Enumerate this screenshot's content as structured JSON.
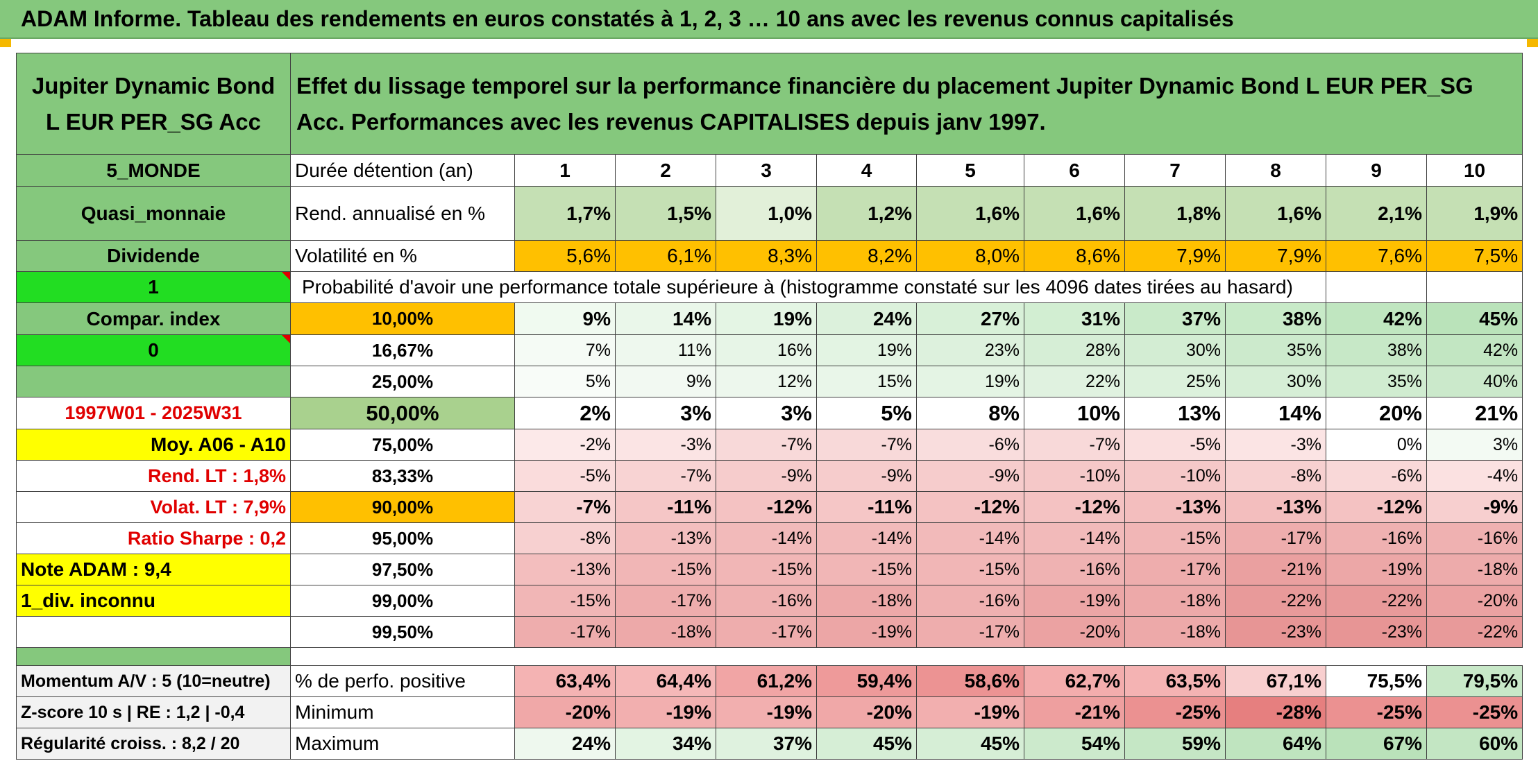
{
  "title": "ADAM Informe. Tableau des rendements en euros constatés à 1, 2, 3 … 10 ans avec les revenus connus capitalisés",
  "fund_name": "Jupiter Dynamic Bond L EUR PER_SG Acc",
  "description": "Effet du lissage temporel sur la performance financière du placement Jupiter Dynamic Bond L EUR PER_SG Acc. Performances avec les revenus CAPITALISES depuis janv 1997.",
  "left": {
    "zone": "5_MONDE",
    "category": "Quasi_monnaie",
    "dividende_label": "Dividende",
    "dividende_value": "1",
    "compar_label": "Compar. index",
    "compar_value": "0",
    "period": "1997W01 - 2025W31",
    "moy": "Moy. A06 - A10",
    "rend_lt": "Rend. LT :   1,8%",
    "volat_lt": "Volat. LT :   7,9%",
    "sharpe": "Ratio Sharpe :    0,2",
    "note": "Note ADAM : 9,4",
    "div_inconnu": "1_div. inconnu",
    "momentum": "Momentum A/V : 5 (10=neutre)",
    "zscore": "Z-score 10 s | RE : 1,2 | -0,4",
    "regularite": "Régularité croiss. : 8,2 / 20"
  },
  "labels": {
    "duree": "Durée détention (an)",
    "rend": "Rend. annualisé en %",
    "vol": "Volatilité en %",
    "proba": "Probabilité d'avoir une performance totale supérieure à (histogramme constaté sur les 4096 dates tirées au hasard)",
    "perfo_pos": "% de perfo. positive",
    "minimum": "Minimum",
    "maximum": "Maximum"
  },
  "years": [
    "1",
    "2",
    "3",
    "4",
    "5",
    "6",
    "7",
    "8",
    "9",
    "10"
  ],
  "rend": [
    "1,7%",
    "1,5%",
    "1,0%",
    "1,2%",
    "1,6%",
    "1,6%",
    "1,8%",
    "1,6%",
    "2,1%",
    "1,9%"
  ],
  "vol": [
    "5,6%",
    "6,1%",
    "8,3%",
    "8,2%",
    "8,0%",
    "8,6%",
    "7,9%",
    "7,9%",
    "7,6%",
    "7,5%"
  ],
  "prob_rows": [
    {
      "p": "10,00%",
      "v": [
        "9%",
        "14%",
        "19%",
        "24%",
        "27%",
        "31%",
        "37%",
        "38%",
        "42%",
        "45%"
      ]
    },
    {
      "p": "16,67%",
      "v": [
        "7%",
        "11%",
        "16%",
        "19%",
        "23%",
        "28%",
        "30%",
        "35%",
        "38%",
        "42%"
      ]
    },
    {
      "p": "25,00%",
      "v": [
        "5%",
        "9%",
        "12%",
        "15%",
        "19%",
        "22%",
        "25%",
        "30%",
        "35%",
        "40%"
      ]
    },
    {
      "p": "50,00%",
      "v": [
        "2%",
        "3%",
        "3%",
        "5%",
        "8%",
        "10%",
        "13%",
        "14%",
        "20%",
        "21%"
      ]
    },
    {
      "p": "75,00%",
      "v": [
        "-2%",
        "-3%",
        "-7%",
        "-7%",
        "-6%",
        "-7%",
        "-5%",
        "-3%",
        "0%",
        "3%"
      ]
    },
    {
      "p": "83,33%",
      "v": [
        "-5%",
        "-7%",
        "-9%",
        "-9%",
        "-9%",
        "-10%",
        "-10%",
        "-8%",
        "-6%",
        "-4%"
      ]
    },
    {
      "p": "90,00%",
      "v": [
        "-7%",
        "-11%",
        "-12%",
        "-11%",
        "-12%",
        "-12%",
        "-13%",
        "-13%",
        "-12%",
        "-9%"
      ]
    },
    {
      "p": "95,00%",
      "v": [
        "-8%",
        "-13%",
        "-14%",
        "-14%",
        "-14%",
        "-14%",
        "-15%",
        "-17%",
        "-16%",
        "-16%"
      ]
    },
    {
      "p": "97,50%",
      "v": [
        "-13%",
        "-15%",
        "-15%",
        "-15%",
        "-15%",
        "-16%",
        "-17%",
        "-21%",
        "-19%",
        "-18%"
      ]
    },
    {
      "p": "99,00%",
      "v": [
        "-15%",
        "-17%",
        "-16%",
        "-18%",
        "-16%",
        "-19%",
        "-18%",
        "-22%",
        "-22%",
        "-20%"
      ]
    },
    {
      "p": "99,50%",
      "v": [
        "-17%",
        "-18%",
        "-17%",
        "-19%",
        "-17%",
        "-20%",
        "-18%",
        "-23%",
        "-23%",
        "-22%"
      ]
    }
  ],
  "perfo_pos": [
    "63,4%",
    "64,4%",
    "61,2%",
    "59,4%",
    "58,6%",
    "62,7%",
    "63,5%",
    "67,1%",
    "75,5%",
    "79,5%"
  ],
  "minimum": [
    "-20%",
    "-19%",
    "-19%",
    "-20%",
    "-19%",
    "-21%",
    "-25%",
    "-28%",
    "-25%",
    "-25%"
  ],
  "maximum": [
    "24%",
    "34%",
    "37%",
    "45%",
    "45%",
    "54%",
    "59%",
    "64%",
    "67%",
    "60%"
  ],
  "colors": {
    "header_green": "#85c87d",
    "rend_fills": [
      "#c5e0b4",
      "#c5e0b4",
      "#e2f0d9",
      "#c5e0b4",
      "#c5e0b4",
      "#c5e0b4",
      "#c5e0b4",
      "#c5e0b4",
      "#c5e0b4",
      "#c5e0b4"
    ],
    "vol_fill": "#ffc000",
    "prob_fills": [
      [
        "#f0faf0",
        "#eaf7ea",
        "#e4f5e4",
        "#dcf1dc",
        "#d8f0d8",
        "#d2eed2",
        "#c9eac9",
        "#c8eac8",
        "#c0e6c0",
        "#bae3ba"
      ],
      [
        "#f5fbf5",
        "#eef8ee",
        "#e7f5e7",
        "#e3f4e3",
        "#ddf1dd",
        "#d6eed6",
        "#d3edd3",
        "#cceacc",
        "#c7e8c7",
        "#c2e6c2"
      ],
      [
        "#f8fcf8",
        "#f2f9f2",
        "#edf7ed",
        "#e9f6e9",
        "#e4f4e4",
        "#e0f2e0",
        "#dcf1dc",
        "#d6eed6",
        "#d0ecd0",
        "#cbe9cb"
      ],
      [
        "#ffffff",
        "#ffffff",
        "#ffffff",
        "#ffffff",
        "#ffffff",
        "#ffffff",
        "#ffffff",
        "#ffffff",
        "#ffffff",
        "#ffffff"
      ],
      [
        "#fce9e9",
        "#fbe4e4",
        "#f8d9d9",
        "#f8d9d9",
        "#f9dddd",
        "#f8d9d9",
        "#fadfdf",
        "#fbe4e4",
        "#ffffff",
        "#f3faf3"
      ],
      [
        "#fadcdc",
        "#f8d3d3",
        "#f6cccc",
        "#f6cccc",
        "#f6cccc",
        "#f5c8c8",
        "#f5c8c8",
        "#f7d0d0",
        "#f9d8d8",
        "#fbe1e1"
      ],
      [
        "#f8d3d3",
        "#f5c6c6",
        "#f4c2c2",
        "#f5c6c6",
        "#f4c2c2",
        "#f4c2c2",
        "#f3bebe",
        "#f3bebe",
        "#f4c2c2",
        "#f7cfcf"
      ],
      [
        "#f7d0d0",
        "#f3bebe",
        "#f2baba",
        "#f2baba",
        "#f2baba",
        "#f2baba",
        "#f1b6b6",
        "#eeadad",
        "#efb1b1",
        "#efb1b1"
      ],
      [
        "#f3bebe",
        "#f1b6b6",
        "#f1b6b6",
        "#f1b6b6",
        "#f1b6b6",
        "#efb2b2",
        "#eeadad",
        "#eaa0a0",
        "#eca7a7",
        "#edabab"
      ],
      [
        "#f1b6b6",
        "#eeadad",
        "#efb1b1",
        "#eda9a9",
        "#efb1b1",
        "#eca6a6",
        "#eda9a9",
        "#e89a9a",
        "#e89a9a",
        "#eba2a2"
      ],
      [
        "#eeadad",
        "#eda9a9",
        "#eeadad",
        "#eca6a6",
        "#eeadad",
        "#eba2a2",
        "#eda9a9",
        "#e79595",
        "#e79595",
        "#e89a9a"
      ]
    ],
    "perfo_fills": [
      "#f4b3b3",
      "#f5b8b8",
      "#f1a5a5",
      "#ee9a9a",
      "#ec9393",
      "#f3adad",
      "#f4b3b3",
      "#f8cfcf",
      "#ffffff",
      "#c8e8c8"
    ],
    "min_fills": [
      "#f0a8a8",
      "#f2afaf",
      "#f2afaf",
      "#f0a8a8",
      "#f2afaf",
      "#ee9f9f",
      "#eb9191",
      "#e67f7f",
      "#eb9191",
      "#eb9191"
    ],
    "max_fills": [
      "#eef8ee",
      "#e3f4e3",
      "#dff2df",
      "#d6eed6",
      "#d6eed6",
      "#cceacc",
      "#c5e7c5",
      "#bfe4bf",
      "#bae2ba",
      "#c3e6c3"
    ]
  }
}
